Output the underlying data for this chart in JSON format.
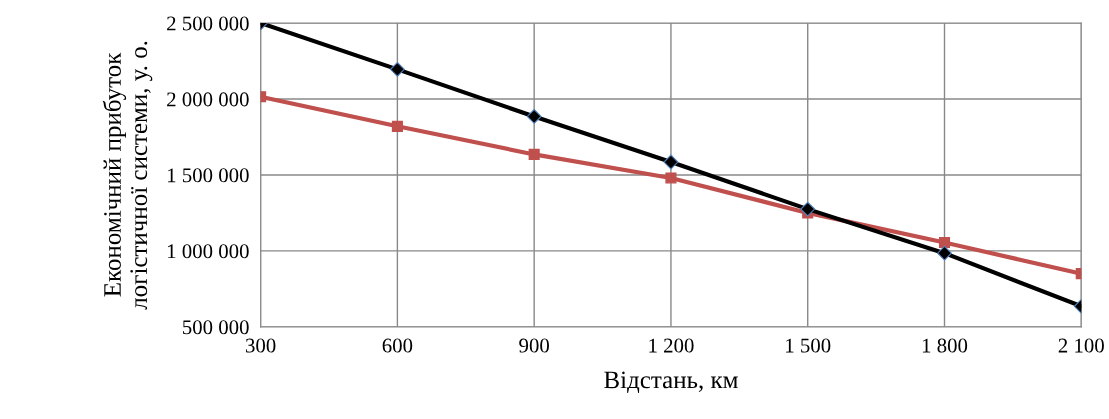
{
  "chart_data": {
    "type": "line",
    "xlabel": "Відстань, км",
    "ylabel": "Економічний прибуток логістичної системи, у. о.",
    "x": [
      300,
      600,
      900,
      1200,
      1500,
      1800,
      2100
    ],
    "series": [
      {
        "color": "#000000",
        "marker": "diamond",
        "values": [
          2500000,
          2195000,
          1885000,
          1585000,
          1275000,
          985000,
          635000
        ]
      },
      {
        "color": "#c0504d",
        "marker": "square",
        "values": [
          2015000,
          1820000,
          1635000,
          1480000,
          1250000,
          1055000,
          850000
        ]
      }
    ],
    "xlim": [
      300,
      2100
    ],
    "xticks": [
      300,
      600,
      900,
      {
        "value": 1200,
        "label": "1 200"
      },
      {
        "value": 1500,
        "label": "1 500"
      },
      {
        "value": 1800,
        "label": "1 800"
      },
      {
        "value": 2100,
        "label": "2 100"
      }
    ],
    "ylim": [
      500000,
      2500000
    ],
    "yticks": [
      {
        "value": 500000,
        "label": "500 000"
      },
      {
        "value": 1000000,
        "label": "1 000 000"
      },
      {
        "value": 1500000,
        "label": "1 500 000"
      },
      {
        "value": 2000000,
        "label": "2 000 000"
      },
      {
        "value": 2500000,
        "label": "2 500 000"
      }
    ],
    "grid": true,
    "legend": false
  }
}
